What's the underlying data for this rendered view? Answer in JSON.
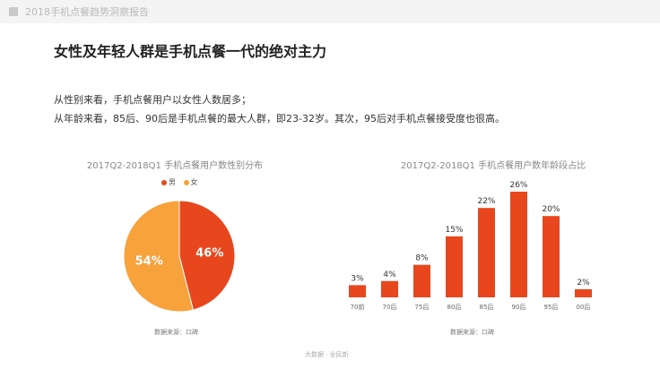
{
  "header": {
    "report_title": "2018手机点餐趋势洞察报告"
  },
  "headline": "女性及年轻人群是手机点餐一代的绝对主力",
  "description": [
    "从性别来看，手机点餐用户以女性人数居多；",
    "从年龄来看，85后、90后是手机点餐的最大人群，即23-32岁。其次，95后对手机点餐接受度也很高。"
  ],
  "colors": {
    "male": "#e8471e",
    "female": "#f7a23b",
    "bar": "#e8471e"
  },
  "chart_data": [
    {
      "type": "pie",
      "title": "2017Q2-2018Q1 手机点餐用户数性别分布",
      "labels": [
        "男",
        "女"
      ],
      "values": [
        46,
        54
      ],
      "value_labels": [
        "46%",
        "54%"
      ],
      "legend_position": "top-right"
    },
    {
      "type": "bar",
      "title": "2017Q2-2018Q1 手机点餐用户数年龄段占比",
      "categories": [
        "70前",
        "70后",
        "75后",
        "80后",
        "85后",
        "90后",
        "95后",
        "00后"
      ],
      "values": [
        3,
        4,
        8,
        15,
        22,
        26,
        20,
        2
      ],
      "value_labels": [
        "3%",
        "4%",
        "8%",
        "15%",
        "22%",
        "26%",
        "20%",
        "2%"
      ],
      "ylim": [
        0,
        26
      ],
      "grid": false
    }
  ],
  "sources": [
    "数据来源：口碑",
    "数据来源：口碑"
  ],
  "footer": "大数据 · 全民新"
}
